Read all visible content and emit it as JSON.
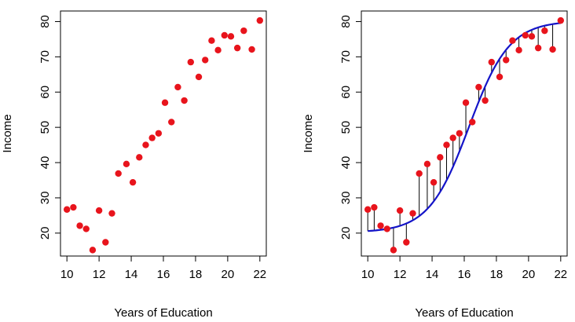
{
  "chart_data": [
    {
      "type": "scatter",
      "title": "",
      "xlabel": "Years of Education",
      "ylabel": "Income",
      "xlim": [
        9.6,
        22.4
      ],
      "ylim": [
        13.5,
        83
      ],
      "xticks": [
        10,
        12,
        14,
        16,
        18,
        20,
        22
      ],
      "yticks": [
        20,
        30,
        40,
        50,
        60,
        70,
        80
      ],
      "grid": false,
      "colors": {
        "points": "#e8141c",
        "axis": "#000000"
      },
      "x": [
        10.0,
        10.4,
        10.8,
        11.2,
        11.6,
        12.0,
        12.4,
        12.8,
        13.2,
        13.7,
        14.1,
        14.5,
        14.9,
        15.3,
        15.7,
        16.1,
        16.5,
        16.9,
        17.3,
        17.7,
        18.2,
        18.6,
        19.0,
        19.4,
        19.8,
        20.2,
        20.6,
        21.0,
        21.5,
        22.0
      ],
      "y": [
        26.7,
        27.3,
        22.1,
        21.2,
        15.2,
        26.4,
        17.4,
        25.6,
        36.9,
        39.6,
        34.4,
        41.5,
        45.0,
        47.0,
        48.3,
        57.0,
        51.5,
        61.4,
        57.6,
        68.5,
        64.3,
        69.1,
        74.6,
        71.9,
        76.1,
        75.8,
        72.5,
        77.4,
        72.1,
        80.3
      ]
    },
    {
      "type": "scatter",
      "title": "",
      "xlabel": "Years of Education",
      "ylabel": "Income",
      "xlim": [
        9.6,
        22.4
      ],
      "ylim": [
        13.5,
        83
      ],
      "xticks": [
        10,
        12,
        14,
        16,
        18,
        20,
        22
      ],
      "yticks": [
        20,
        30,
        40,
        50,
        60,
        70,
        80
      ],
      "grid": false,
      "colors": {
        "points": "#e8141c",
        "curve": "#1414c8",
        "residuals": "#000000",
        "axis": "#000000"
      },
      "x": [
        10.0,
        10.4,
        10.8,
        11.2,
        11.6,
        12.0,
        12.4,
        12.8,
        13.2,
        13.7,
        14.1,
        14.5,
        14.9,
        15.3,
        15.7,
        16.1,
        16.5,
        16.9,
        17.3,
        17.7,
        18.2,
        18.6,
        19.0,
        19.4,
        19.8,
        20.2,
        20.6,
        21.0,
        21.5,
        22.0
      ],
      "y": [
        26.7,
        27.3,
        22.1,
        21.2,
        15.2,
        26.4,
        17.4,
        25.6,
        36.9,
        39.6,
        34.4,
        41.5,
        45.0,
        47.0,
        48.3,
        57.0,
        51.5,
        61.4,
        57.6,
        68.5,
        64.3,
        69.1,
        74.6,
        71.9,
        76.1,
        75.8,
        72.5,
        77.4,
        72.1,
        80.3
      ],
      "fit_curve": {
        "form": "logistic",
        "lower": 20.2,
        "upper": 80.2,
        "midpoint": 16.3,
        "scale": 1.25
      },
      "residual_lines": true
    }
  ]
}
